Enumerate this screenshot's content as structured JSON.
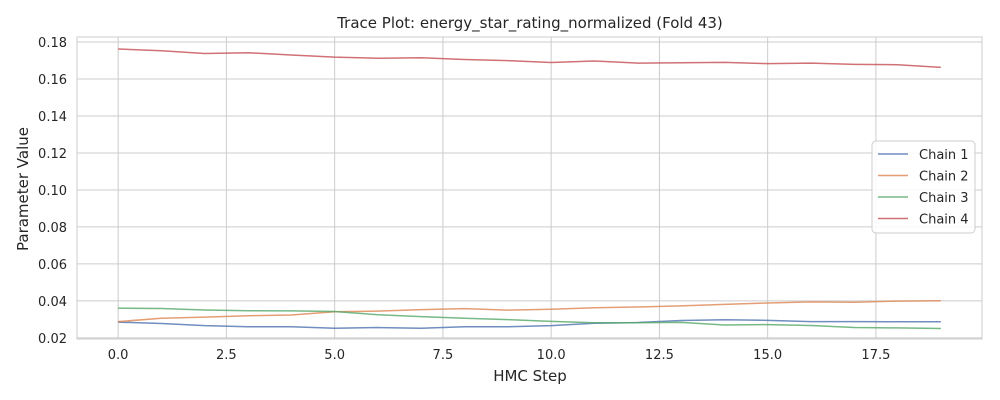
{
  "chart_data": {
    "type": "line",
    "title": "Trace Plot: energy_star_rating_normalized (Fold 43)",
    "xlabel": "HMC Step",
    "ylabel": "Parameter Value",
    "xlim": [
      -0.95,
      19.95
    ],
    "ylim": [
      0.0194,
      0.1827
    ],
    "xticks": [
      0.0,
      2.5,
      5.0,
      7.5,
      10.0,
      12.5,
      15.0,
      17.5
    ],
    "xtick_labels": [
      "0.0",
      "2.5",
      "5.0",
      "7.5",
      "10.0",
      "12.5",
      "15.0",
      "17.5"
    ],
    "yticks": [
      0.02,
      0.04,
      0.06,
      0.08,
      0.1,
      0.12,
      0.14,
      0.16,
      0.18
    ],
    "ytick_labels": [
      "0.02",
      "0.04",
      "0.06",
      "0.08",
      "0.10",
      "0.12",
      "0.14",
      "0.16",
      "0.18"
    ],
    "grid": true,
    "legend_position": "center-right",
    "x": [
      0,
      1,
      2,
      3,
      4,
      5,
      6,
      7,
      8,
      9,
      10,
      11,
      12,
      13,
      14,
      15,
      16,
      17,
      18,
      19
    ],
    "series": [
      {
        "name": "Chain 1",
        "color": "#4c72b0",
        "values": [
          0.0285,
          0.0278,
          0.0266,
          0.026,
          0.026,
          0.0252,
          0.0256,
          0.0252,
          0.026,
          0.026,
          0.0266,
          0.0279,
          0.0283,
          0.0294,
          0.0298,
          0.0295,
          0.0288,
          0.0288,
          0.0287,
          0.0287
        ]
      },
      {
        "name": "Chain 2",
        "color": "#dd8452",
        "values": [
          0.0288,
          0.0306,
          0.0312,
          0.032,
          0.0324,
          0.0341,
          0.0345,
          0.0353,
          0.0358,
          0.035,
          0.0355,
          0.0363,
          0.0367,
          0.0373,
          0.0381,
          0.0389,
          0.0395,
          0.0393,
          0.0399,
          0.0401
        ]
      },
      {
        "name": "Chain 3",
        "color": "#55a868",
        "values": [
          0.0361,
          0.0359,
          0.0351,
          0.0347,
          0.0346,
          0.0343,
          0.0325,
          0.0315,
          0.0306,
          0.0299,
          0.0289,
          0.0282,
          0.0282,
          0.0284,
          0.027,
          0.0272,
          0.0267,
          0.0256,
          0.0254,
          0.0251
        ]
      },
      {
        "name": "Chain 4",
        "color": "#c44e52",
        "values": [
          0.1762,
          0.1753,
          0.1738,
          0.1742,
          0.173,
          0.1718,
          0.1712,
          0.1715,
          0.1705,
          0.1699,
          0.1689,
          0.1697,
          0.1686,
          0.1688,
          0.169,
          0.1683,
          0.1686,
          0.1679,
          0.1677,
          0.1663
        ]
      }
    ]
  }
}
